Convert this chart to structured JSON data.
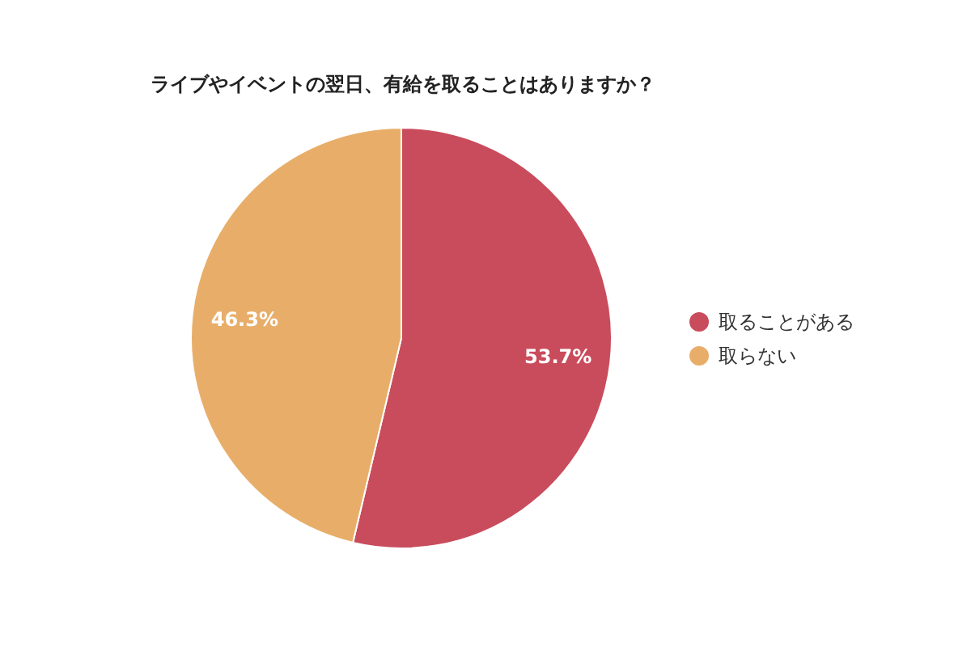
{
  "chart_data": {
    "type": "pie",
    "title": "ライブやイベントの翌日、有給を取ることはありますか？",
    "categories": [
      "取ることがある",
      "取らない"
    ],
    "values": [
      53.7,
      46.3
    ],
    "colors": [
      "#c94c5c",
      "#e8ae69"
    ],
    "value_labels": [
      "53.7%",
      "46.3%"
    ],
    "legend": "right"
  }
}
